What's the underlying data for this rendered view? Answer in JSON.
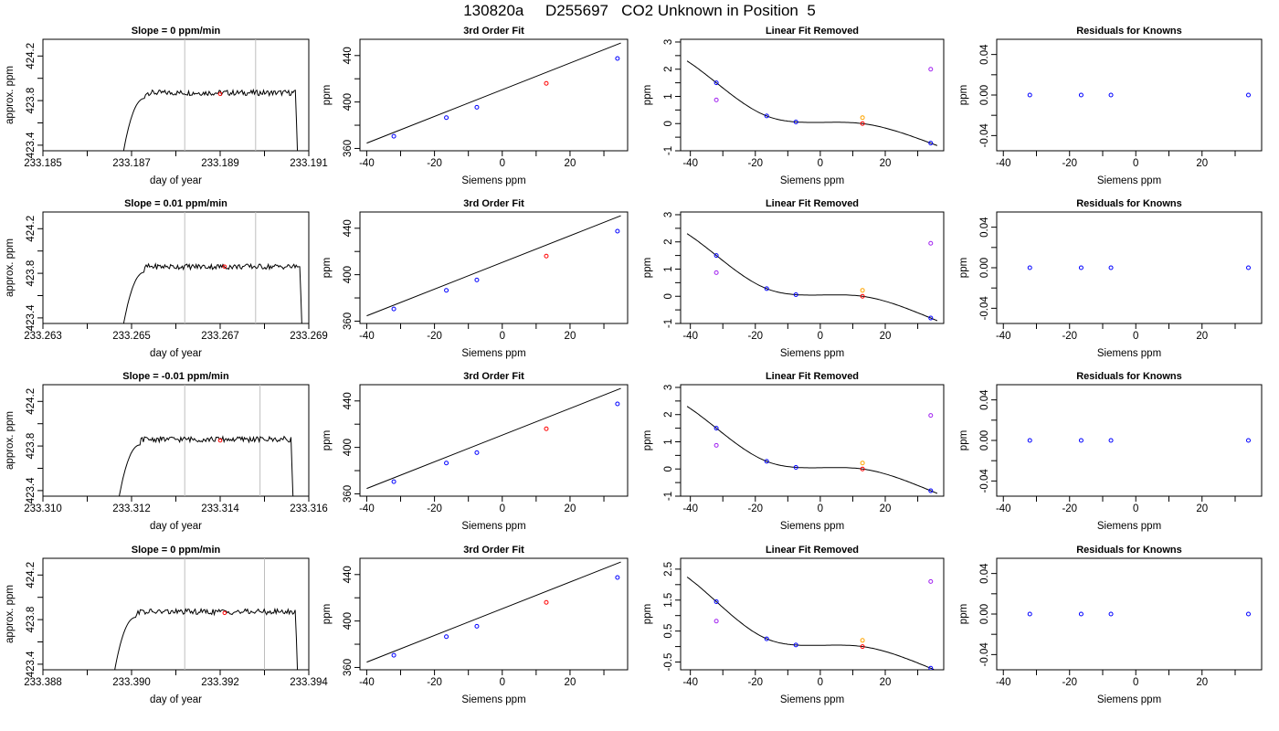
{
  "title": "130820a     D255697   CO2 Unknown in Position  5",
  "colors": {
    "line": "#000000",
    "blue": "#0000ff",
    "red": "#ff0000",
    "orange": "#ffa500",
    "purple": "#a020f0",
    "vline": "#bebebe"
  },
  "chart_data": [
    {
      "row": 0,
      "type": "line",
      "title": "Slope =  0  ppm/min",
      "xlabel": "day of year",
      "ylabel": "approx. ppm",
      "xticks": [
        "233.185",
        "233.187",
        "233.189",
        "233.191"
      ],
      "yticks": [
        "423.4",
        "423.8",
        "424.2"
      ],
      "xlim": [
        233.185,
        233.191
      ],
      "ylim": [
        423.35,
        424.35
      ],
      "vlines": [
        233.1882,
        233.1898
      ],
      "marker": {
        "x": 233.189,
        "y": 423.86
      },
      "trace": {
        "x0": 233.1867,
        "plateau_start": 233.1873,
        "plateau_end": 233.1907,
        "x_end": 233.1908,
        "level": 423.87
      }
    },
    {
      "row": 0,
      "type": "scatter",
      "title": "3rd Order Fit",
      "xlabel": "Siemens ppm",
      "ylabel": "ppm",
      "xticks": [
        "-40",
        "-20",
        "0",
        "20"
      ],
      "yticks": [
        "360",
        "400",
        "440"
      ],
      "xlim": [
        -42,
        37
      ],
      "ylim": [
        358,
        454
      ],
      "points": [
        {
          "x": -32,
          "y": 370.5,
          "color": "blue"
        },
        {
          "x": -16.5,
          "y": 386.5,
          "color": "blue"
        },
        {
          "x": -7.5,
          "y": 395.5,
          "color": "blue"
        },
        {
          "x": 13,
          "y": 416.0,
          "color": "red"
        },
        {
          "x": 34,
          "y": 437.5,
          "color": "blue"
        }
      ],
      "fit_line": [
        [
          -40,
          364.6
        ],
        [
          35,
          450.8
        ]
      ]
    },
    {
      "row": 0,
      "type": "scatter",
      "title": "Linear Fit Removed",
      "xlabel": "Siemens ppm",
      "ylabel": "ppm",
      "xticks": [
        "-40",
        "-20",
        "0",
        "20"
      ],
      "yticks": [
        "-1",
        "0",
        "1",
        "2",
        "3"
      ],
      "xlim": [
        -43,
        38
      ],
      "ylim": [
        -1,
        3.1
      ],
      "points": [
        {
          "x": -32,
          "y": 1.5,
          "color": "blue"
        },
        {
          "x": -32,
          "y": 0.87,
          "color": "purple"
        },
        {
          "x": -16.5,
          "y": 0.28,
          "color": "blue"
        },
        {
          "x": -7.5,
          "y": 0.06,
          "color": "blue"
        },
        {
          "x": 13,
          "y": 0.22,
          "color": "orange"
        },
        {
          "x": 13,
          "y": 0.0,
          "color": "red"
        },
        {
          "x": 34,
          "y": 2.0,
          "color": "purple"
        },
        {
          "x": 34,
          "y": -0.72,
          "color": "blue"
        }
      ],
      "curve_anchor": [
        [
          -32,
          1.5
        ],
        [
          -16.5,
          0.28
        ],
        [
          -7.5,
          0.06
        ],
        [
          13,
          0.0
        ],
        [
          34,
          -0.72
        ]
      ]
    },
    {
      "row": 0,
      "type": "scatter",
      "title": "Residuals for Knowns",
      "xlabel": "Siemens ppm",
      "ylabel": "ppm",
      "xticks": [
        "-40",
        "-20",
        "0",
        "20"
      ],
      "yticks": [
        "-0.04",
        "0.00",
        "0.04"
      ],
      "xlim": [
        -42,
        38
      ],
      "ylim": [
        -0.055,
        0.055
      ],
      "points": [
        {
          "x": -32,
          "y": 0,
          "color": "blue"
        },
        {
          "x": -16.5,
          "y": 0,
          "color": "blue"
        },
        {
          "x": -7.5,
          "y": 0,
          "color": "blue"
        },
        {
          "x": 34,
          "y": 0,
          "color": "blue"
        }
      ]
    },
    {
      "row": 1,
      "type": "line",
      "title": "Slope =  0.01  ppm/min",
      "xlabel": "day of year",
      "ylabel": "approx. ppm",
      "xticks": [
        "233.263",
        "233.265",
        "233.267",
        "233.269"
      ],
      "yticks": [
        "423.4",
        "423.8",
        "424.2"
      ],
      "xlim": [
        233.263,
        233.269
      ],
      "ylim": [
        423.35,
        424.35
      ],
      "vlines": [
        233.2662,
        233.2678
      ],
      "marker": {
        "x": 233.2671,
        "y": 423.86
      },
      "trace": {
        "x0": 233.2647,
        "plateau_start": 233.2653,
        "plateau_end": 233.2688,
        "x_end": 233.2689,
        "level": 423.86
      }
    },
    {
      "row": 1,
      "type": "scatter",
      "title": "3rd Order Fit",
      "xlabel": "Siemens ppm",
      "ylabel": "ppm",
      "xticks": [
        "-40",
        "-20",
        "0",
        "20"
      ],
      "yticks": [
        "360",
        "400",
        "440"
      ],
      "xlim": [
        -42,
        37
      ],
      "ylim": [
        358,
        454
      ],
      "points": [
        {
          "x": -32,
          "y": 370.5,
          "color": "blue"
        },
        {
          "x": -16.5,
          "y": 386.5,
          "color": "blue"
        },
        {
          "x": -7.5,
          "y": 395.5,
          "color": "blue"
        },
        {
          "x": 13,
          "y": 416.0,
          "color": "red"
        },
        {
          "x": 34,
          "y": 437.5,
          "color": "blue"
        }
      ],
      "fit_line": [
        [
          -40,
          364.6
        ],
        [
          35,
          450.8
        ]
      ]
    },
    {
      "row": 1,
      "type": "scatter",
      "title": "Linear Fit Removed",
      "xlabel": "Siemens ppm",
      "ylabel": "ppm",
      "xticks": [
        "-40",
        "-20",
        "0",
        "20"
      ],
      "yticks": [
        "-1",
        "0",
        "1",
        "2",
        "3"
      ],
      "xlim": [
        -43,
        38
      ],
      "ylim": [
        -1,
        3.1
      ],
      "points": [
        {
          "x": -32,
          "y": 1.5,
          "color": "blue"
        },
        {
          "x": -32,
          "y": 0.87,
          "color": "purple"
        },
        {
          "x": -16.5,
          "y": 0.28,
          "color": "blue"
        },
        {
          "x": -7.5,
          "y": 0.06,
          "color": "blue"
        },
        {
          "x": 13,
          "y": 0.22,
          "color": "orange"
        },
        {
          "x": 13,
          "y": 0.0,
          "color": "red"
        },
        {
          "x": 34,
          "y": 1.95,
          "color": "purple"
        },
        {
          "x": 34,
          "y": -0.8,
          "color": "blue"
        }
      ],
      "curve_anchor": [
        [
          -32,
          1.5
        ],
        [
          -16.5,
          0.28
        ],
        [
          -7.5,
          0.06
        ],
        [
          13,
          0.0
        ],
        [
          34,
          -0.8
        ]
      ]
    },
    {
      "row": 1,
      "type": "scatter",
      "title": "Residuals for Knowns",
      "xlabel": "Siemens ppm",
      "ylabel": "ppm",
      "xticks": [
        "-40",
        "-20",
        "0",
        "20"
      ],
      "yticks": [
        "-0.04",
        "0.00",
        "0.04"
      ],
      "xlim": [
        -42,
        38
      ],
      "ylim": [
        -0.055,
        0.055
      ],
      "points": [
        {
          "x": -32,
          "y": 0,
          "color": "blue"
        },
        {
          "x": -16.5,
          "y": 0,
          "color": "blue"
        },
        {
          "x": -7.5,
          "y": 0,
          "color": "blue"
        },
        {
          "x": 34,
          "y": 0,
          "color": "blue"
        }
      ]
    },
    {
      "row": 2,
      "type": "line",
      "title": "Slope =  -0.01  ppm/min",
      "xlabel": "day of year",
      "ylabel": "approx. ppm",
      "xticks": [
        "233.310",
        "233.312",
        "233.314",
        "233.316"
      ],
      "yticks": [
        "423.4",
        "423.8",
        "424.2"
      ],
      "xlim": [
        233.31,
        233.316
      ],
      "ylim": [
        423.35,
        424.35
      ],
      "vlines": [
        233.3132,
        233.3149
      ],
      "marker": {
        "x": 233.314,
        "y": 423.85
      },
      "trace": {
        "x0": 233.3116,
        "plateau_start": 233.3122,
        "plateau_end": 233.3156,
        "x_end": 233.3157,
        "level": 423.86
      }
    },
    {
      "row": 2,
      "type": "scatter",
      "title": "3rd Order Fit",
      "xlabel": "Siemens ppm",
      "ylabel": "ppm",
      "xticks": [
        "-40",
        "-20",
        "0",
        "20"
      ],
      "yticks": [
        "360",
        "400",
        "440"
      ],
      "xlim": [
        -42,
        37
      ],
      "ylim": [
        358,
        454
      ],
      "points": [
        {
          "x": -32,
          "y": 370.5,
          "color": "blue"
        },
        {
          "x": -16.5,
          "y": 386.5,
          "color": "blue"
        },
        {
          "x": -7.5,
          "y": 395.5,
          "color": "blue"
        },
        {
          "x": 13,
          "y": 416.0,
          "color": "red"
        },
        {
          "x": 34,
          "y": 437.5,
          "color": "blue"
        }
      ],
      "fit_line": [
        [
          -40,
          364.6
        ],
        [
          35,
          450.8
        ]
      ]
    },
    {
      "row": 2,
      "type": "scatter",
      "title": "Linear Fit Removed",
      "xlabel": "Siemens ppm",
      "ylabel": "ppm",
      "xticks": [
        "-40",
        "-20",
        "0",
        "20"
      ],
      "yticks": [
        "-1",
        "0",
        "1",
        "2",
        "3"
      ],
      "xlim": [
        -43,
        38
      ],
      "ylim": [
        -1,
        3.1
      ],
      "points": [
        {
          "x": -32,
          "y": 1.5,
          "color": "blue"
        },
        {
          "x": -32,
          "y": 0.87,
          "color": "purple"
        },
        {
          "x": -16.5,
          "y": 0.28,
          "color": "blue"
        },
        {
          "x": -7.5,
          "y": 0.06,
          "color": "blue"
        },
        {
          "x": 13,
          "y": 0.22,
          "color": "orange"
        },
        {
          "x": 13,
          "y": 0.0,
          "color": "red"
        },
        {
          "x": 34,
          "y": 1.97,
          "color": "purple"
        },
        {
          "x": 34,
          "y": -0.8,
          "color": "blue"
        }
      ],
      "curve_anchor": [
        [
          -32,
          1.5
        ],
        [
          -16.5,
          0.28
        ],
        [
          -7.5,
          0.06
        ],
        [
          13,
          0.0
        ],
        [
          34,
          -0.8
        ]
      ]
    },
    {
      "row": 2,
      "type": "scatter",
      "title": "Residuals for Knowns",
      "xlabel": "Siemens ppm",
      "ylabel": "ppm",
      "xticks": [
        "-40",
        "-20",
        "0",
        "20"
      ],
      "yticks": [
        "-0.04",
        "0.00",
        "0.04"
      ],
      "xlim": [
        -42,
        38
      ],
      "ylim": [
        -0.055,
        0.055
      ],
      "points": [
        {
          "x": -32,
          "y": 0,
          "color": "blue"
        },
        {
          "x": -16.5,
          "y": 0,
          "color": "blue"
        },
        {
          "x": -7.5,
          "y": 0,
          "color": "blue"
        },
        {
          "x": 34,
          "y": 0,
          "color": "blue"
        }
      ]
    },
    {
      "row": 3,
      "type": "line",
      "title": "Slope =  0  ppm/min",
      "xlabel": "day of year",
      "ylabel": "approx. ppm",
      "xticks": [
        "233.388",
        "233.390",
        "233.392",
        "233.394"
      ],
      "yticks": [
        "423.4",
        "423.8",
        "424.2"
      ],
      "xlim": [
        233.388,
        233.394
      ],
      "ylim": [
        423.35,
        424.35
      ],
      "vlines": [
        233.3912,
        233.393
      ],
      "marker": {
        "x": 233.3921,
        "y": 423.86
      },
      "trace": {
        "x0": 233.3895,
        "plateau_start": 233.3901,
        "plateau_end": 233.3937,
        "x_end": 233.3938,
        "level": 423.87
      }
    },
    {
      "row": 3,
      "type": "scatter",
      "title": "3rd Order Fit",
      "xlabel": "Siemens ppm",
      "ylabel": "ppm",
      "xticks": [
        "-40",
        "-20",
        "0",
        "20"
      ],
      "yticks": [
        "360",
        "400",
        "440"
      ],
      "xlim": [
        -42,
        37
      ],
      "ylim": [
        358,
        454
      ],
      "points": [
        {
          "x": -32,
          "y": 370.5,
          "color": "blue"
        },
        {
          "x": -16.5,
          "y": 386.5,
          "color": "blue"
        },
        {
          "x": -7.5,
          "y": 395.5,
          "color": "blue"
        },
        {
          "x": 13,
          "y": 416.0,
          "color": "red"
        },
        {
          "x": 34,
          "y": 437.5,
          "color": "blue"
        }
      ],
      "fit_line": [
        [
          -40,
          364.6
        ],
        [
          35,
          450.8
        ]
      ]
    },
    {
      "row": 3,
      "type": "scatter",
      "title": "Linear Fit Removed",
      "xlabel": "Siemens ppm",
      "ylabel": "ppm",
      "xticks": [
        "-40",
        "-20",
        "0",
        "20"
      ],
      "yticks": [
        "-0.5",
        "0.5",
        "1.5",
        "2.5"
      ],
      "xlim": [
        -43,
        38
      ],
      "ylim": [
        -0.75,
        2.85
      ],
      "points": [
        {
          "x": -32,
          "y": 1.45,
          "color": "blue"
        },
        {
          "x": -32,
          "y": 0.82,
          "color": "purple"
        },
        {
          "x": -16.5,
          "y": 0.25,
          "color": "blue"
        },
        {
          "x": -7.5,
          "y": 0.05,
          "color": "blue"
        },
        {
          "x": 13,
          "y": 0.2,
          "color": "orange"
        },
        {
          "x": 13,
          "y": 0.0,
          "color": "red"
        },
        {
          "x": 34,
          "y": 2.1,
          "color": "purple"
        },
        {
          "x": 34,
          "y": -0.7,
          "color": "blue"
        }
      ],
      "curve_anchor": [
        [
          -32,
          1.45
        ],
        [
          -16.5,
          0.25
        ],
        [
          -7.5,
          0.05
        ],
        [
          13,
          0.0
        ],
        [
          34,
          -0.7
        ]
      ]
    },
    {
      "row": 3,
      "type": "scatter",
      "title": "Residuals for Knowns",
      "xlabel": "Siemens ppm",
      "ylabel": "ppm",
      "xticks": [
        "-40",
        "-20",
        "0",
        "20"
      ],
      "yticks": [
        "-0.04",
        "0.00",
        "0.04"
      ],
      "xlim": [
        -42,
        38
      ],
      "ylim": [
        -0.055,
        0.055
      ],
      "points": [
        {
          "x": -32,
          "y": 0,
          "color": "blue"
        },
        {
          "x": -16.5,
          "y": 0,
          "color": "blue"
        },
        {
          "x": -7.5,
          "y": 0,
          "color": "blue"
        },
        {
          "x": 34,
          "y": 0,
          "color": "blue"
        }
      ]
    }
  ]
}
